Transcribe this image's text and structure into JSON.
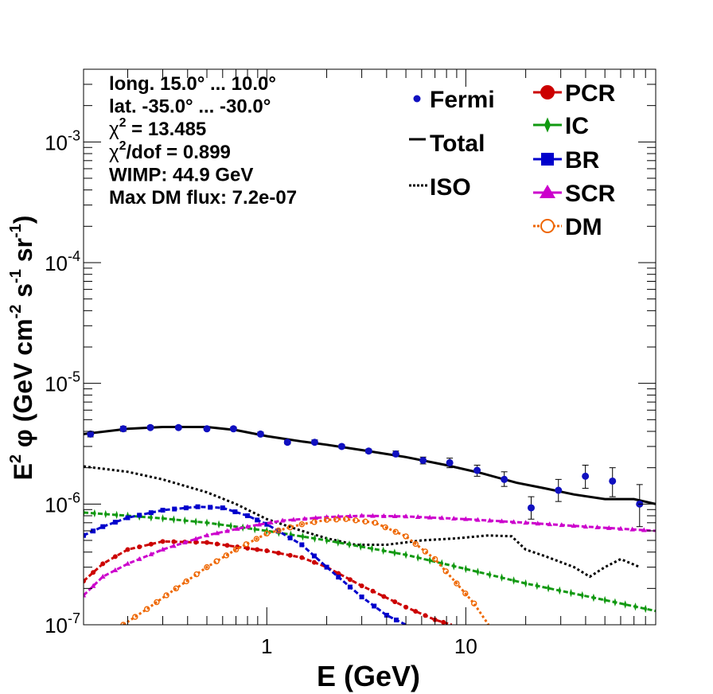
{
  "chart_data": {
    "type": "line",
    "x_scale": "log",
    "y_scale": "log",
    "xlim": [
      0.12,
      90
    ],
    "ylim": [
      1e-07,
      0.004
    ],
    "xlabel": "E (GeV)",
    "ylabel": {
      "base": "E",
      "sup1": "2",
      "mid": " φ (GeV cm",
      "sup2": "-2",
      "mid2": " s",
      "sup3": "-1",
      "mid3": " sr",
      "sup4": "-1",
      "end": ")"
    },
    "x_tick_labels": [
      {
        "value": 1,
        "label": "1"
      },
      {
        "value": 10,
        "label": "10"
      }
    ],
    "y_tick_labels": [
      {
        "value": 1e-07,
        "base": "10",
        "exp": "-7"
      },
      {
        "value": 1e-06,
        "base": "10",
        "exp": "-6"
      },
      {
        "value": 1e-05,
        "base": "10",
        "exp": "-5"
      },
      {
        "value": 0.0001,
        "base": "10",
        "exp": "-4"
      },
      {
        "value": 0.001,
        "base": "10",
        "exp": "-3"
      }
    ],
    "annotations": [
      {
        "id": "long",
        "text": "long. 15.0° ... 10.0°"
      },
      {
        "id": "lat",
        "text": "lat. -35.0° ... -30.0°"
      },
      {
        "id": "chi2",
        "base": "χ",
        "sup": "2",
        "rest": " = 13.485"
      },
      {
        "id": "chi2dof",
        "base": "χ",
        "sup": "2",
        "rest": "/dof = 0.899"
      },
      {
        "id": "wimp",
        "text": "WIMP: 44.9 GeV"
      },
      {
        "id": "maxdm",
        "text": "Max DM flux: 7.2e-07"
      }
    ],
    "legend_left": [
      {
        "name": "Fermi",
        "marker": "dot",
        "color": "#1010c0"
      },
      {
        "name": "Total",
        "marker": "line",
        "color": "#000000"
      },
      {
        "name": "ISO",
        "marker": "dotted",
        "color": "#000000"
      }
    ],
    "legend_right": [
      {
        "name": "PCR",
        "marker": "circle",
        "color": "#cc0000"
      },
      {
        "name": "IC",
        "marker": "star",
        "color": "#119911"
      },
      {
        "name": "BR",
        "marker": "square",
        "color": "#0000cc"
      },
      {
        "name": "SCR",
        "marker": "triangle",
        "color": "#cc00cc"
      },
      {
        "name": "DM",
        "marker": "opencircle",
        "color": "#ee6600"
      }
    ],
    "fermi": {
      "x": [
        0.13,
        0.19,
        0.26,
        0.36,
        0.5,
        0.68,
        0.93,
        1.27,
        1.74,
        2.38,
        3.25,
        4.45,
        6.1,
        8.3,
        11.4,
        15.6,
        21.3,
        29.2,
        39.9,
        54.6,
        74.7
      ],
      "y": [
        3.8e-06,
        4.2e-06,
        4.3e-06,
        4.3e-06,
        4.2e-06,
        4.2e-06,
        3.8e-06,
        3.25e-06,
        3.25e-06,
        3e-06,
        2.75e-06,
        2.6e-06,
        2.3e-06,
        2.2e-06,
        1.9e-06,
        1.6e-06,
        9.3e-07,
        1.3e-06,
        1.7e-06,
        1.55e-06,
        1e-06
      ],
      "err_lo": [
        3.6e-06,
        4e-06,
        4.2e-06,
        4.2e-06,
        4.1e-06,
        4.1e-06,
        3.7e-06,
        3.15e-06,
        3.15e-06,
        2.9e-06,
        2.65e-06,
        2.5e-06,
        2.15e-06,
        2e-06,
        1.7e-06,
        1.4e-06,
        7.5e-07,
        1.05e-06,
        1.35e-06,
        1.15e-06,
        6.5e-07
      ],
      "err_hi": [
        4e-06,
        4.4e-06,
        4.45e-06,
        4.45e-06,
        4.35e-06,
        4.35e-06,
        3.95e-06,
        3.35e-06,
        3.4e-06,
        3.1e-06,
        2.85e-06,
        2.75e-06,
        2.45e-06,
        2.4e-06,
        2.1e-06,
        1.85e-06,
        1.15e-06,
        1.6e-06,
        2.1e-06,
        2e-06,
        1.45e-06
      ]
    },
    "series": [
      {
        "name": "Total",
        "style": "solid",
        "color": "#000000",
        "x": [
          0.12,
          0.2,
          0.3,
          0.5,
          0.7,
          1.0,
          1.5,
          2.0,
          3.0,
          5.0,
          8.0,
          12,
          18,
          25,
          35,
          50,
          70,
          90
        ],
        "y": [
          3.8e-06,
          4.2e-06,
          4.35e-06,
          4.35e-06,
          4.1e-06,
          3.65e-06,
          3.3e-06,
          3.1e-06,
          2.8e-06,
          2.45e-06,
          2.1e-06,
          1.8e-06,
          1.5e-06,
          1.35e-06,
          1.2e-06,
          1.1e-06,
          1.1e-06,
          1e-06
        ]
      },
      {
        "name": "ISO",
        "style": "dotted",
        "color": "#000000",
        "x": [
          0.12,
          0.2,
          0.3,
          0.5,
          0.7,
          1.0,
          1.5,
          2.0,
          2.8,
          4.0,
          6.0,
          9.0,
          13,
          17,
          20,
          25,
          35,
          42,
          50,
          60,
          75
        ],
        "y": [
          2.05e-06,
          1.85e-06,
          1.6e-06,
          1.25e-06,
          1e-06,
          7.5e-07,
          6e-07,
          5.2e-07,
          4.6e-07,
          4.6e-07,
          5e-07,
          5.2e-07,
          5.5e-07,
          5.4e-07,
          4.2e-07,
          3.7e-07,
          3e-07,
          2.5e-07,
          3e-07,
          3.5e-07,
          3e-07
        ]
      },
      {
        "name": "PCR",
        "style": "dashed",
        "color": "#cc0000",
        "x": [
          0.12,
          0.15,
          0.2,
          0.3,
          0.5,
          0.8,
          1.0,
          1.5,
          2.0,
          3.0,
          5.0,
          7.0,
          8.5
        ],
        "y": [
          2.3e-07,
          3.2e-07,
          4.2e-07,
          4.9e-07,
          4.8e-07,
          4.3e-07,
          4.1e-07,
          3.6e-07,
          3e-07,
          2.1e-07,
          1.4e-07,
          1.1e-07,
          1e-07
        ]
      },
      {
        "name": "IC",
        "style": "dashed",
        "color": "#119911",
        "x": [
          0.12,
          0.2,
          0.3,
          0.5,
          1.0,
          2.0,
          5.0,
          10,
          20,
          50,
          90
        ],
        "y": [
          8.5e-07,
          8e-07,
          7.6e-07,
          7e-07,
          6e-07,
          5e-07,
          3.8e-07,
          2.9e-07,
          2.2e-07,
          1.6e-07,
          1.3e-07
        ]
      },
      {
        "name": "BR",
        "style": "dashed",
        "color": "#0000cc",
        "x": [
          0.12,
          0.15,
          0.2,
          0.3,
          0.45,
          0.6,
          0.8,
          1.0,
          1.5,
          2.0,
          3.0,
          4.0,
          5.0
        ],
        "y": [
          5.5e-07,
          6.5e-07,
          7.7e-07,
          8.9e-07,
          9.5e-07,
          9.3e-07,
          8e-07,
          6.8e-07,
          4.6e-07,
          3e-07,
          1.7e-07,
          1.2e-07,
          1e-07
        ]
      },
      {
        "name": "SCR",
        "style": "dashed",
        "color": "#cc00cc",
        "x": [
          0.12,
          0.15,
          0.2,
          0.3,
          0.5,
          0.8,
          1.2,
          2.0,
          3.0,
          5.0,
          10,
          20,
          40,
          90
        ],
        "y": [
          1.75e-07,
          2.5e-07,
          3.2e-07,
          4.2e-07,
          5.5e-07,
          6.5e-07,
          7.3e-07,
          7.8e-07,
          8e-07,
          7.9e-07,
          7.5e-07,
          7e-07,
          6.5e-07,
          6e-07
        ]
      },
      {
        "name": "DM",
        "style": "dotted",
        "color": "#ee6600",
        "x": [
          0.19,
          0.25,
          0.35,
          0.5,
          0.7,
          1.0,
          1.5,
          2.0,
          2.5,
          3.5,
          5.0,
          7.0,
          9.0,
          11,
          13
        ],
        "y": [
          1e-07,
          1.35e-07,
          2e-07,
          3e-07,
          4.2e-07,
          5.7e-07,
          6.8e-07,
          7.4e-07,
          7.5e-07,
          7e-07,
          5.4e-07,
          3.5e-07,
          2.2e-07,
          1.5e-07,
          1e-07
        ]
      }
    ]
  }
}
